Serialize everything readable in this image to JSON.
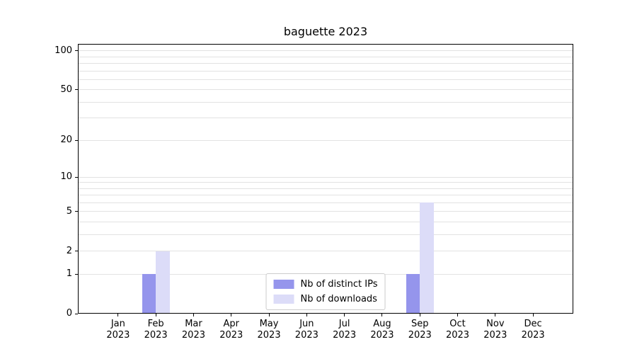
{
  "chart_data": {
    "type": "bar",
    "title": "baguette 2023",
    "categories": [
      "Jan 2023",
      "Feb 2023",
      "Mar 2023",
      "Apr 2023",
      "May 2023",
      "Jun 2023",
      "Jul 2023",
      "Aug 2023",
      "Sep 2023",
      "Oct 2023",
      "Nov 2023",
      "Dec 2023"
    ],
    "series": [
      {
        "name": "Nb of distinct IPs",
        "color": "#9595ec",
        "values": [
          0,
          1,
          0,
          0,
          0,
          0,
          0,
          0,
          1,
          0,
          0,
          0
        ]
      },
      {
        "name": "Nb of downloads",
        "color": "#dcdcf8",
        "values": [
          0,
          2,
          0,
          0,
          0,
          0,
          0,
          0,
          6,
          0,
          0,
          0
        ]
      }
    ],
    "xlabel": "",
    "ylabel": "",
    "y_scale": "log1p",
    "ylim": [
      0,
      113
    ],
    "y_ticks": [
      0,
      1,
      2,
      5,
      10,
      20,
      50,
      100
    ],
    "y_gridlines": [
      1,
      2,
      3,
      4,
      5,
      6,
      7,
      8,
      9,
      10,
      20,
      30,
      40,
      50,
      60,
      70,
      80,
      90,
      100
    ],
    "grid": true,
    "legend_position": "lower center",
    "style": {
      "grid_color": "#e2e2e2",
      "axis_color": "#000000",
      "legend_border": "#cccccc",
      "background": "#ffffff"
    }
  }
}
